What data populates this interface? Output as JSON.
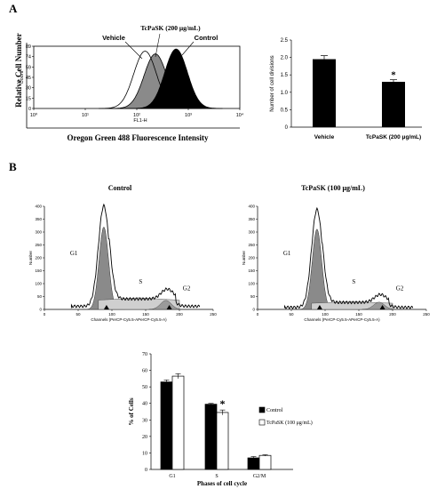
{
  "chart_data": [
    {
      "panel": "A",
      "type": "area",
      "xscale": "log",
      "xticks": [
        "10⁰",
        "10¹",
        "10²",
        "10³",
        "10⁴"
      ],
      "yticks": [
        "0",
        "15",
        "30",
        "45",
        "59",
        "74",
        "89"
      ],
      "xlabel": "FL1-H",
      "ylabel": "Count",
      "outer_xlabel": "Oregon Green 488 Fluorescence Intensity",
      "outer_ylabel": "Relative Cell Number",
      "annotations": [
        "Vehicle",
        "TcPaSK (200 μg/mL)",
        "Control"
      ],
      "series": [
        {
          "name": "Vehicle",
          "peak_x": 145,
          "height": 82,
          "style": "outline",
          "color": "#ffffff"
        },
        {
          "name": "TcPaSK (200 μg/mL)",
          "peak_x": 230,
          "height": 78,
          "style": "filled",
          "color": "#8a8a8a"
        },
        {
          "name": "Control",
          "peak_x": 580,
          "height": 85,
          "style": "filled",
          "color": "#000000"
        }
      ]
    },
    {
      "panel": "A",
      "type": "bar",
      "categories": [
        "Vehicle",
        "TcPaSK (200 μg/mL)"
      ],
      "values": [
        1.95,
        1.3
      ],
      "errors": [
        0.1,
        0.06
      ],
      "ylabel": "Number of cell divisions",
      "ylim": [
        0,
        2.5
      ],
      "yticks": [
        "0",
        "0.5",
        "1.0",
        "1.5",
        "2.0",
        "2.5"
      ],
      "significance": [
        "",
        "*"
      ],
      "color": "#000000"
    },
    {
      "panel": "B",
      "type": "area",
      "title": "Control",
      "xlabel": "Channels (PerCP-Cy5.5-APerCP-Cy5.5-A)",
      "ylabel": "Number",
      "xticks": [
        "0",
        "50",
        "100",
        "150",
        "200",
        "250"
      ],
      "yticks": [
        "0",
        "50",
        "100",
        "150",
        "200",
        "250",
        "300",
        "350",
        "400"
      ],
      "phase_labels": [
        "G1",
        "S",
        "G2"
      ]
    },
    {
      "panel": "B",
      "type": "area",
      "title": "TcPaSK (100 μg/mL)",
      "xlabel": "Channels (PerCP-Cy5.5-APerCP-Cy5.5-A)",
      "ylabel": "Number",
      "xticks": [
        "0",
        "50",
        "100",
        "150",
        "200",
        "250"
      ],
      "yticks": [
        "0",
        "50",
        "100",
        "150",
        "200",
        "250",
        "300",
        "350",
        "400"
      ],
      "phase_labels": [
        "G1",
        "S",
        "G2"
      ]
    },
    {
      "panel": "B",
      "type": "bar",
      "categories": [
        "G1",
        "S",
        "G2/M"
      ],
      "series": [
        {
          "name": "Control",
          "values": [
            53,
            39.5,
            7
          ],
          "errors": [
            1.2,
            0.5,
            0.8
          ],
          "color": "#000000"
        },
        {
          "name": "TcPaSK (100 μg/mL)",
          "values": [
            56.5,
            34.5,
            8.5
          ],
          "errors": [
            1.5,
            1.5,
            0.4
          ],
          "color": "#ffffff"
        }
      ],
      "xlabel": "Phases of cell cycle",
      "ylabel": "% of Cells",
      "ylim": [
        0,
        70
      ],
      "yticks": [
        "0",
        "10",
        "20",
        "30",
        "40",
        "50",
        "60",
        "70"
      ],
      "significance": [
        "",
        "*",
        ""
      ],
      "legend": "right"
    }
  ],
  "labels": {
    "panel_a": "A",
    "panel_b": "B"
  }
}
